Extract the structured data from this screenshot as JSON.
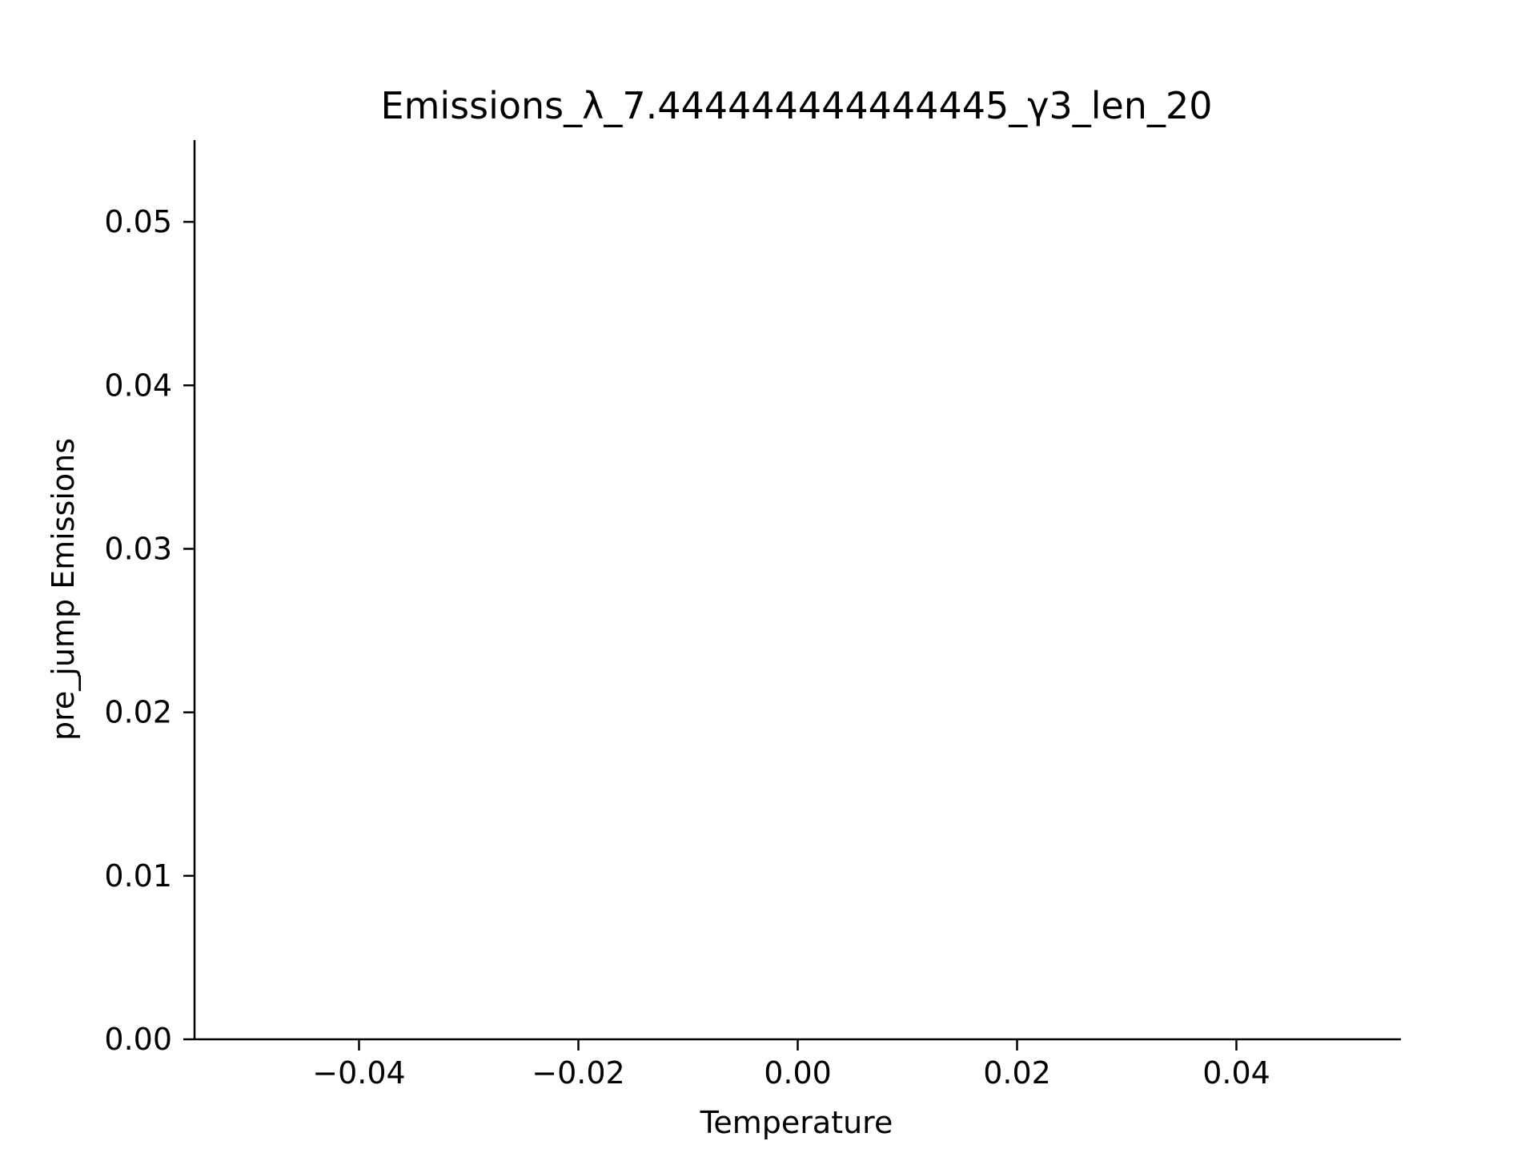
{
  "chart_data": {
    "type": "scatter",
    "title": "Emissions_λ_7.444444444444445_γ3_len_20",
    "xlabel": "Temperature",
    "ylabel": "pre_jump Emissions",
    "xlim": [
      -0.055,
      0.055
    ],
    "ylim": [
      0.0,
      0.055
    ],
    "x_ticks": [
      -0.04,
      -0.02,
      0.0,
      0.02,
      0.04
    ],
    "x_tick_labels": [
      "−0.04",
      "−0.02",
      "0.00",
      "0.02",
      "0.04"
    ],
    "y_ticks": [
      0.0,
      0.01,
      0.02,
      0.03,
      0.04,
      0.05
    ],
    "y_tick_labels": [
      "0.00",
      "0.01",
      "0.02",
      "0.03",
      "0.04",
      "0.05"
    ],
    "series": [
      {
        "x": [],
        "y": []
      }
    ],
    "grid": false,
    "spines": [
      "left",
      "bottom"
    ]
  }
}
